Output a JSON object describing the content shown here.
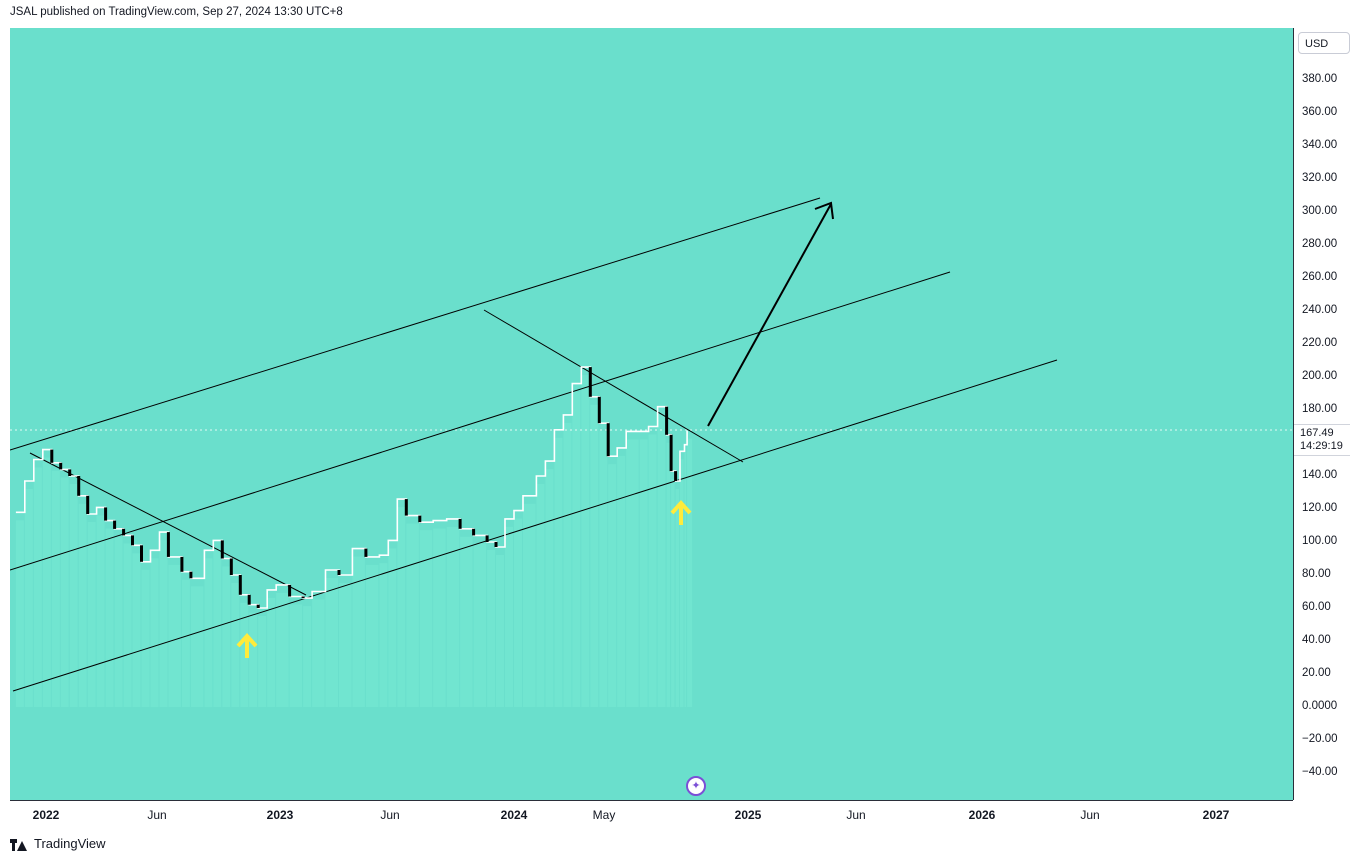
{
  "header": {
    "publish_text": "JSAL published on TradingView.com, Sep 27, 2024 13:30 UTC+8"
  },
  "footer": {
    "brand": "TradingView"
  },
  "colors": {
    "background": "#6adfcc",
    "candle_up": "#ffffff",
    "candle_down": "#000000",
    "trendline": "#000000",
    "arrow_marker": "#ffeb3b",
    "volume": "#7ef0d8"
  },
  "chart_data": {
    "type": "candlestick",
    "currency": "USD",
    "last_price": "167.49",
    "countdown": "14:29:19",
    "y_ticks": [
      "380.00",
      "360.00",
      "340.00",
      "320.00",
      "300.00",
      "280.00",
      "260.00",
      "240.00",
      "220.00",
      "200.00",
      "180.00",
      "140.00",
      "120.00",
      "100.00",
      "80.00",
      "60.00",
      "40.00",
      "20.00",
      "0.0000",
      "−20.00",
      "−40.00"
    ],
    "x_ticks": [
      {
        "label": "2022",
        "year": true
      },
      {
        "label": "Jun",
        "year": false
      },
      {
        "label": "2023",
        "year": true
      },
      {
        "label": "Jun",
        "year": false
      },
      {
        "label": "2024",
        "year": true
      },
      {
        "label": "May",
        "year": false
      },
      {
        "label": "2025",
        "year": true
      },
      {
        "label": "Jun",
        "year": false
      },
      {
        "label": "2026",
        "year": true
      },
      {
        "label": "Jun",
        "year": false
      },
      {
        "label": "2027",
        "year": true
      }
    ],
    "price_series": [
      [
        "2021-11-15",
        118
      ],
      [
        "2021-11-29",
        137
      ],
      [
        "2021-12-13",
        150
      ],
      [
        "2021-12-27",
        156
      ],
      [
        "2022-01-10",
        148
      ],
      [
        "2022-01-24",
        144
      ],
      [
        "2022-02-07",
        140
      ],
      [
        "2022-02-21",
        128
      ],
      [
        "2022-03-07",
        117
      ],
      [
        "2022-03-21",
        121
      ],
      [
        "2022-04-04",
        113
      ],
      [
        "2022-04-18",
        108
      ],
      [
        "2022-05-02",
        104
      ],
      [
        "2022-05-16",
        98
      ],
      [
        "2022-05-30",
        88
      ],
      [
        "2022-06-13",
        95
      ],
      [
        "2022-06-27",
        106
      ],
      [
        "2022-07-11",
        91
      ],
      [
        "2022-08-01",
        82
      ],
      [
        "2022-08-15",
        78
      ],
      [
        "2022-09-05",
        95
      ],
      [
        "2022-09-19",
        101
      ],
      [
        "2022-10-03",
        90
      ],
      [
        "2022-10-17",
        80
      ],
      [
        "2022-10-31",
        68
      ],
      [
        "2022-11-14",
        62
      ],
      [
        "2022-11-28",
        60
      ],
      [
        "2022-12-12",
        71
      ],
      [
        "2022-12-26",
        74
      ],
      [
        "2023-01-16",
        67
      ],
      [
        "2023-02-06",
        66
      ],
      [
        "2023-02-20",
        70
      ],
      [
        "2023-03-13",
        83
      ],
      [
        "2023-04-03",
        80
      ],
      [
        "2023-04-24",
        96
      ],
      [
        "2023-05-15",
        91
      ],
      [
        "2023-06-05",
        92
      ],
      [
        "2023-06-19",
        101
      ],
      [
        "2023-07-03",
        126
      ],
      [
        "2023-07-17",
        116
      ],
      [
        "2023-08-07",
        112
      ],
      [
        "2023-08-28",
        113
      ],
      [
        "2023-09-18",
        114
      ],
      [
        "2023-10-09",
        108
      ],
      [
        "2023-10-30",
        104
      ],
      [
        "2023-11-20",
        100
      ],
      [
        "2023-12-04",
        97
      ],
      [
        "2023-12-18",
        114
      ],
      [
        "2024-01-01",
        119
      ],
      [
        "2024-01-15",
        128
      ],
      [
        "2024-02-05",
        140
      ],
      [
        "2024-02-19",
        149
      ],
      [
        "2024-03-04",
        168
      ],
      [
        "2024-03-18",
        177
      ],
      [
        "2024-04-01",
        196
      ],
      [
        "2024-04-15",
        206
      ],
      [
        "2024-04-29",
        188
      ],
      [
        "2024-05-13",
        172
      ],
      [
        "2024-05-27",
        152
      ],
      [
        "2024-06-10",
        157
      ],
      [
        "2024-06-24",
        167
      ],
      [
        "2024-07-15",
        167
      ],
      [
        "2024-07-29",
        170
      ],
      [
        "2024-08-12",
        182
      ],
      [
        "2024-08-26",
        165
      ],
      [
        "2024-09-02",
        143
      ],
      [
        "2024-09-09",
        137
      ],
      [
        "2024-09-16",
        155
      ],
      [
        "2024-09-23",
        159
      ],
      [
        "2024-09-27",
        167.49
      ]
    ],
    "log_scale": false,
    "grid": false
  }
}
